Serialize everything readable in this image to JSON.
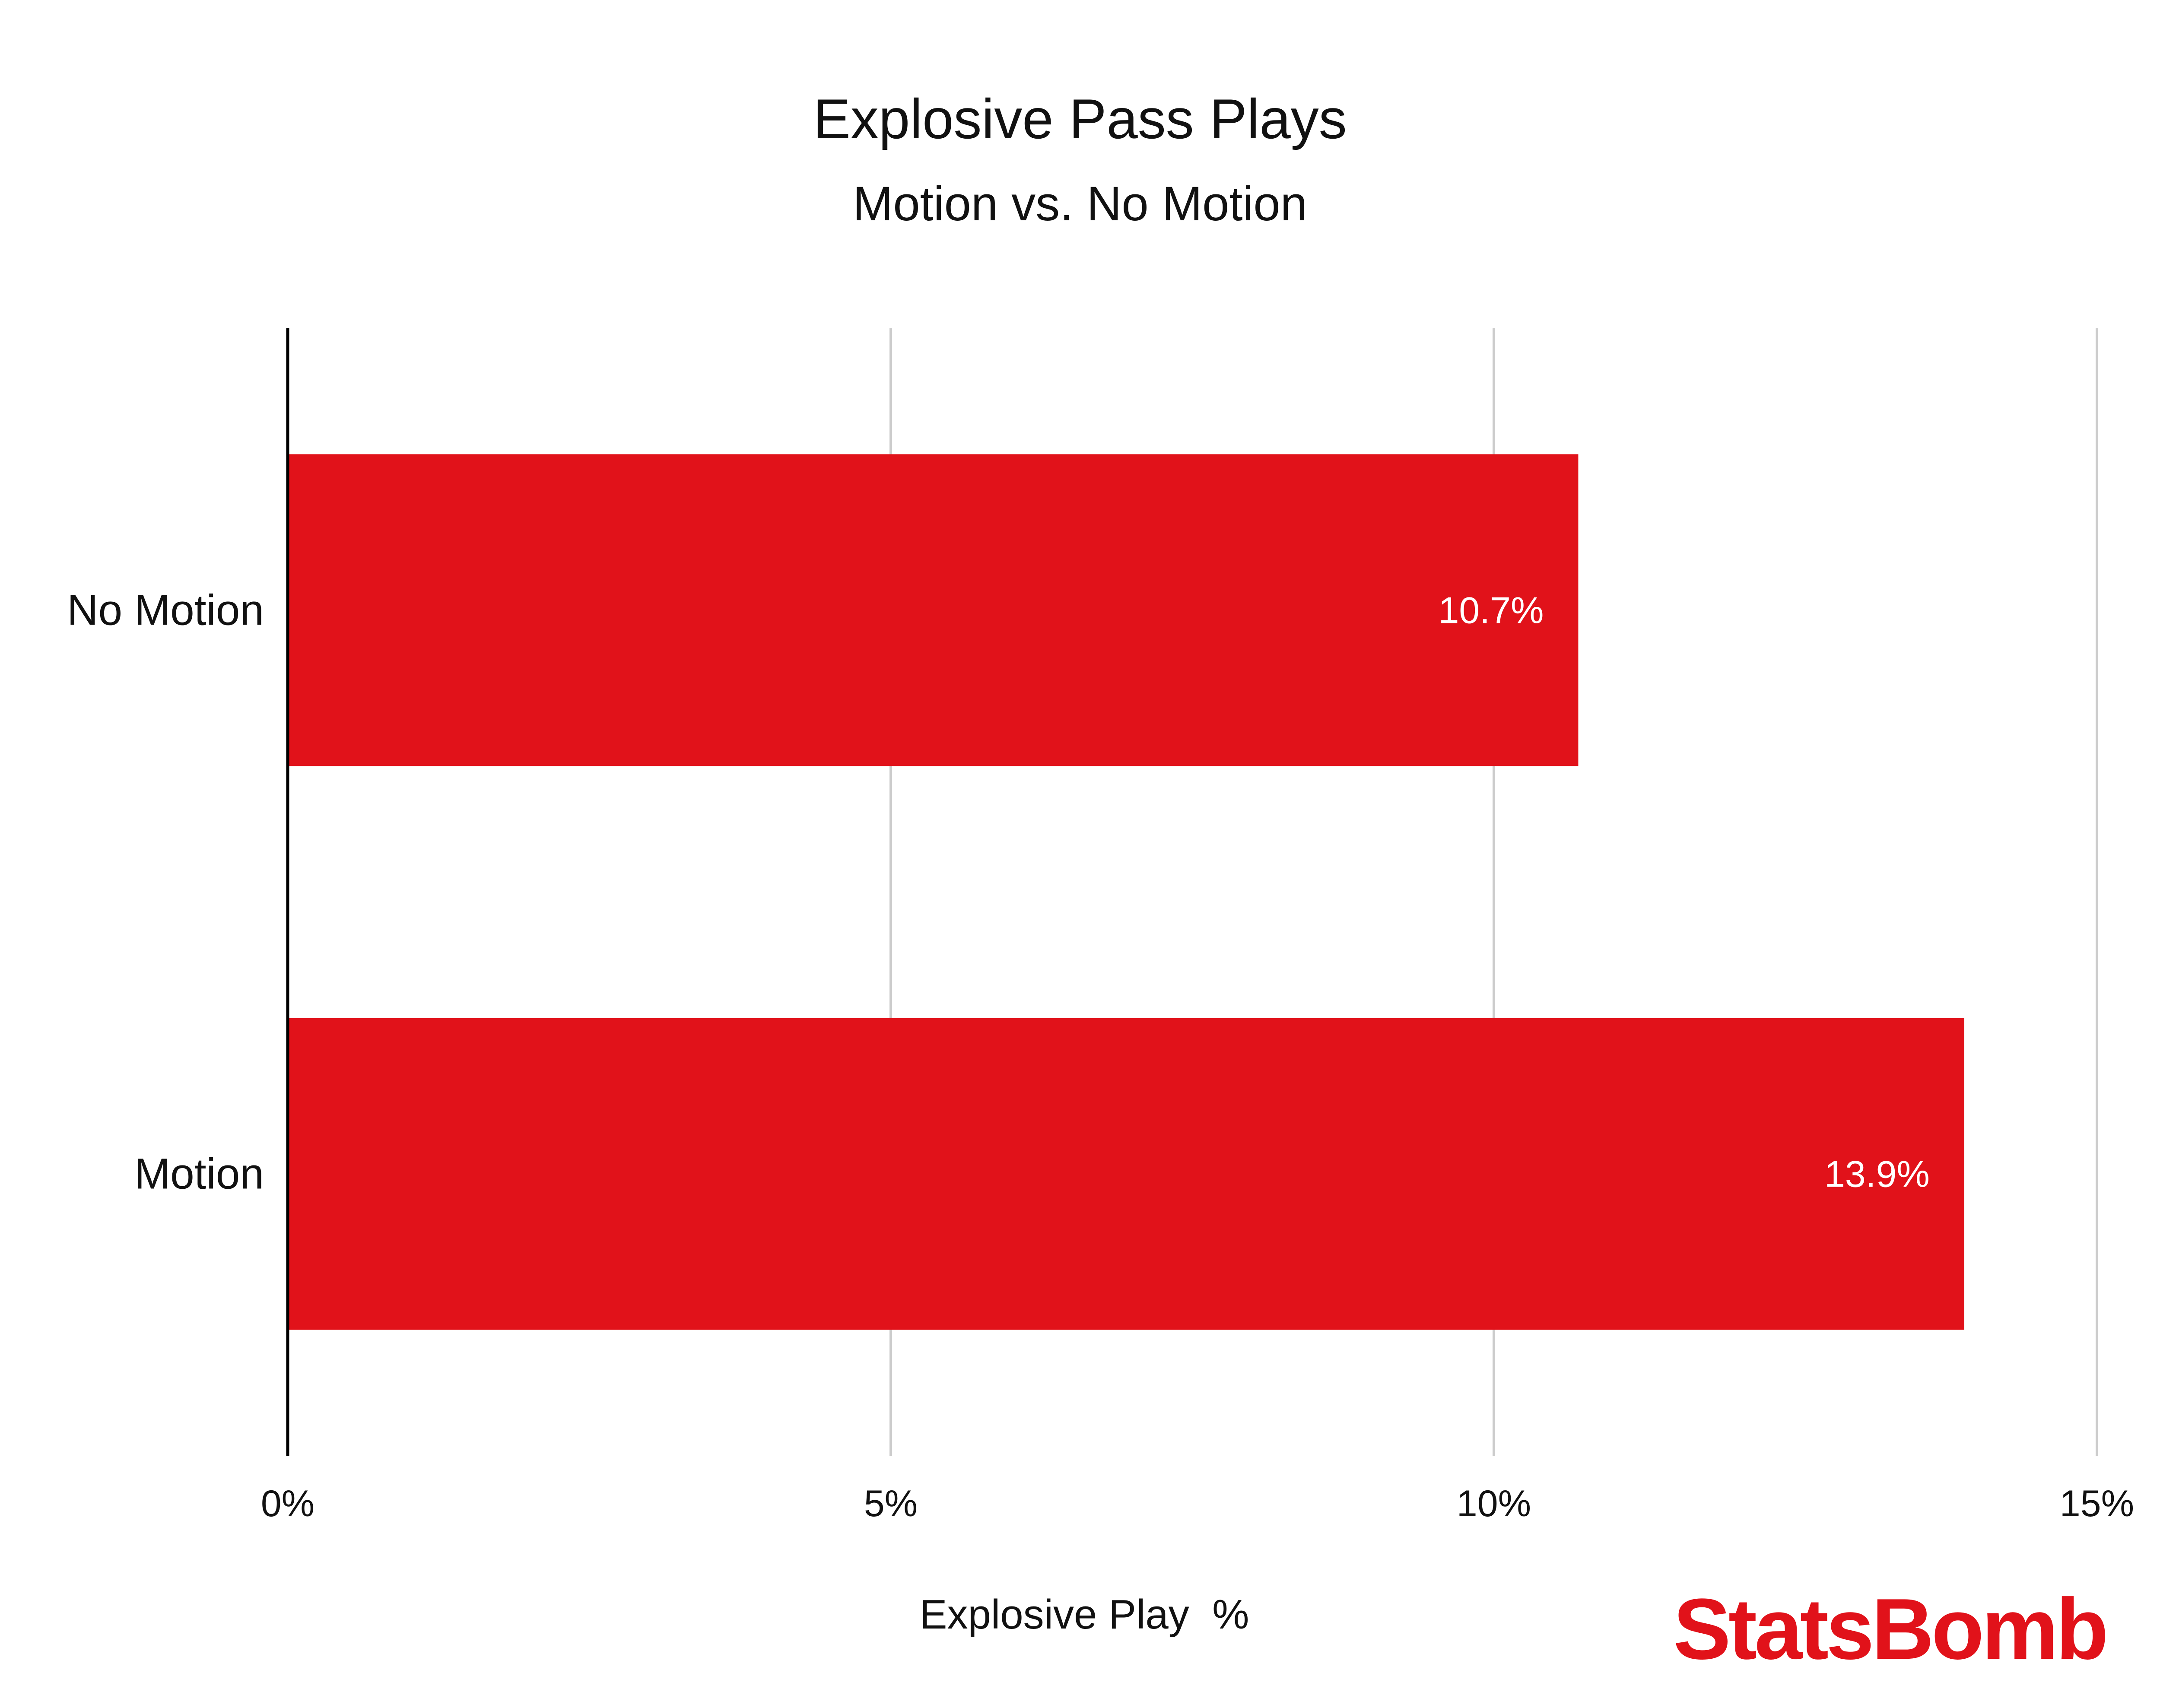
{
  "chart_data": {
    "type": "bar",
    "orientation": "horizontal",
    "title": "Explosive Pass Plays",
    "subtitle": "Motion vs. No Motion",
    "xlabel": "Explosive Play  %",
    "ylabel": "",
    "categories": [
      "No Motion",
      "Motion"
    ],
    "values": [
      10.7,
      13.9
    ],
    "data_labels": [
      "10.7%",
      "13.9%"
    ],
    "xlim": [
      0,
      15
    ],
    "x_ticks": [
      0,
      5,
      10,
      15
    ],
    "x_tick_labels": [
      "0%",
      "5%",
      "10%",
      "15%"
    ],
    "grid": true,
    "bar_color": "#e1121a"
  },
  "branding": {
    "logo_text": "StatsBomb",
    "logo_color": "#e1121a"
  },
  "colors": {
    "gridline": "#cccccc",
    "axis": "#000000",
    "label_on_bar": "#ffffff"
  }
}
